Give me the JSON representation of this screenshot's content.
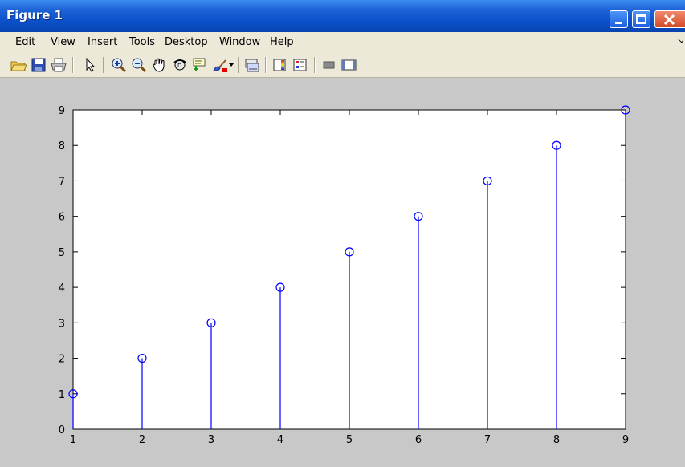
{
  "window": {
    "title": "Figure 1"
  },
  "menu": {
    "items": [
      "Edit",
      "View",
      "Insert",
      "Tools",
      "Desktop",
      "Window",
      "Help"
    ]
  },
  "toolbar": {
    "icons": [
      "open-folder-icon",
      "save-icon",
      "print-icon",
      "pointer-icon",
      "zoom-in-icon",
      "zoom-out-icon",
      "pan-hand-icon",
      "rotate-3d-icon",
      "data-cursor-icon",
      "brush-icon",
      "link-plot-icon",
      "colorbar-icon",
      "legend-icon",
      "hide-plot-tools-icon",
      "show-plot-tools-icon"
    ]
  },
  "chart_data": {
    "type": "stem",
    "x": [
      1,
      2,
      3,
      4,
      5,
      6,
      7,
      8,
      9
    ],
    "y": [
      1,
      2,
      3,
      4,
      5,
      6,
      7,
      8,
      9
    ],
    "xlim": [
      1,
      9
    ],
    "ylim": [
      0,
      9
    ],
    "xticks": [
      "1",
      "2",
      "3",
      "4",
      "5",
      "6",
      "7",
      "8",
      "9"
    ],
    "yticks": [
      "0",
      "1",
      "2",
      "3",
      "4",
      "5",
      "6",
      "7",
      "8",
      "9"
    ],
    "color": "#0000ff",
    "marker": "circle-open",
    "grid": false
  }
}
